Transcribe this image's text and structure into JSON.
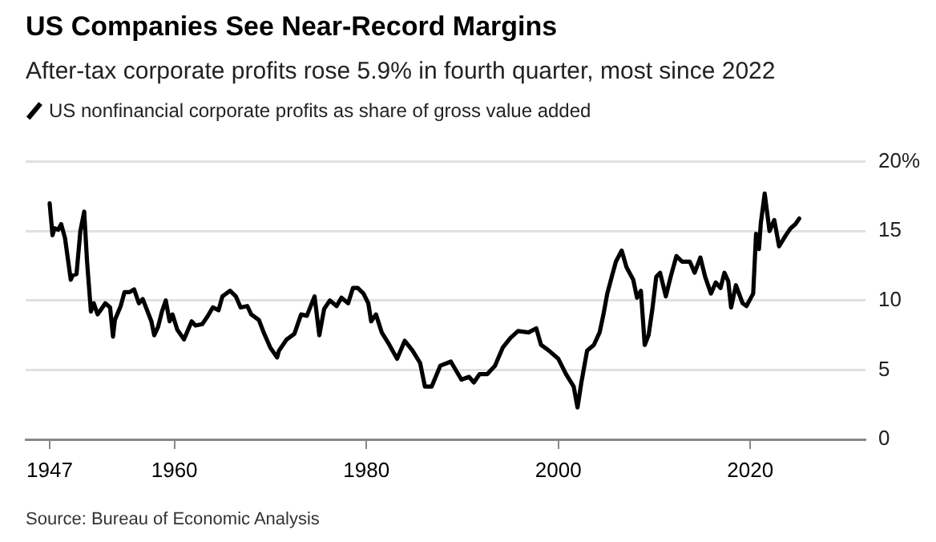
{
  "chart_data": {
    "type": "line",
    "title": "US Companies See Near-Record Margins",
    "subtitle": "After-tax corporate profits rose 5.9% in fourth quarter, most since 2022",
    "annotations": [
      "Source: Bureau of Economic Analysis"
    ],
    "legend": "top left",
    "grid": "y",
    "marker": "none",
    "line_style": "solid",
    "xlim": [
      1944.5,
      2032
    ],
    "xticks": [
      1947,
      1960,
      1980,
      2000,
      2020
    ],
    "ylim": [
      0,
      20
    ],
    "yticks": [
      0,
      5,
      10,
      15,
      {
        "value": 20,
        "label": "20%"
      }
    ],
    "series": [
      {
        "name": "US nonfinancial corporate profits as share of gross value added",
        "color": "#000000",
        "x": [
          1947.0,
          1947.3,
          1947.5,
          1947.9,
          1948.2,
          1948.6,
          1949.2,
          1949.4,
          1949.8,
          1950.2,
          1950.6,
          1950.9,
          1951.3,
          1951.6,
          1952.0,
          1952.4,
          1952.8,
          1953.3,
          1953.6,
          1953.8,
          1954.4,
          1954.8,
          1955.3,
          1955.8,
          1956.3,
          1956.7,
          1957.1,
          1957.6,
          1957.9,
          1958.3,
          1958.7,
          1959.1,
          1959.5,
          1959.8,
          1960.3,
          1961.0,
          1961.8,
          1962.2,
          1962.9,
          1963.4,
          1964.0,
          1964.6,
          1965.0,
          1965.8,
          1966.4,
          1966.9,
          1967.6,
          1968.0,
          1968.8,
          1969.3,
          1970.0,
          1970.7,
          1970.9,
          1971.7,
          1972.5,
          1973.2,
          1973.8,
          1974.6,
          1975.1,
          1975.6,
          1976.2,
          1976.9,
          1977.4,
          1978.1,
          1978.6,
          1979.1,
          1979.7,
          1980.2,
          1980.5,
          1981.0,
          1981.6,
          1982.4,
          1983.2,
          1984.0,
          1984.8,
          1985.6,
          1986.1,
          1986.8,
          1987.7,
          1988.8,
          1989.9,
          1990.7,
          1991.2,
          1991.8,
          1992.6,
          1993.4,
          1994.2,
          1995.0,
          1995.8,
          1996.9,
          1997.7,
          1998.2,
          1999.0,
          2000.0,
          2000.8,
          2001.6,
          2002.0,
          2002.4,
          2003.0,
          2003.7,
          2004.3,
          2004.7,
          2005.1,
          2005.6,
          2006.0,
          2006.6,
          2007.1,
          2007.8,
          2008.2,
          2008.6,
          2009.0,
          2009.4,
          2009.8,
          2010.2,
          2010.6,
          2011.2,
          2011.7,
          2012.3,
          2012.9,
          2013.7,
          2014.2,
          2014.8,
          2015.3,
          2015.9,
          2016.4,
          2016.9,
          2017.3,
          2017.7,
          2018.0,
          2018.5,
          2019.2,
          2019.6,
          2020.3,
          2020.6,
          2020.9,
          2021.1,
          2021.5,
          2022.0,
          2022.5,
          2023.0,
          2023.7,
          2024.2,
          2024.7,
          2025.1
        ],
        "values": [
          17.0,
          14.7,
          15.2,
          15.1,
          15.5,
          14.5,
          11.5,
          11.8,
          11.9,
          15.0,
          16.4,
          12.8,
          9.2,
          9.8,
          9.0,
          9.4,
          9.8,
          9.5,
          7.4,
          8.6,
          9.6,
          10.6,
          10.6,
          10.8,
          9.8,
          10.1,
          9.4,
          8.5,
          7.5,
          8.1,
          9.2,
          10.0,
          8.5,
          9.0,
          7.9,
          7.2,
          8.5,
          8.2,
          8.3,
          8.8,
          9.5,
          9.3,
          10.3,
          10.7,
          10.3,
          9.5,
          9.6,
          9.0,
          8.6,
          7.7,
          6.6,
          5.9,
          6.4,
          7.2,
          7.6,
          9.0,
          8.9,
          10.3,
          7.5,
          9.4,
          10.0,
          9.6,
          10.2,
          9.8,
          10.9,
          10.9,
          10.5,
          9.8,
          8.5,
          9.0,
          7.7,
          6.8,
          5.8,
          7.1,
          6.4,
          5.5,
          3.8,
          3.8,
          5.3,
          5.6,
          4.3,
          4.5,
          4.1,
          4.7,
          4.7,
          5.3,
          6.6,
          7.3,
          7.8,
          7.7,
          8.0,
          6.8,
          6.4,
          5.8,
          4.7,
          3.8,
          2.3,
          4.1,
          6.4,
          6.8,
          7.7,
          9.0,
          10.5,
          11.8,
          12.8,
          13.6,
          12.4,
          11.5,
          10.2,
          10.7,
          6.8,
          7.5,
          9.4,
          11.7,
          12.0,
          10.3,
          11.7,
          13.2,
          12.8,
          12.8,
          12.0,
          13.1,
          11.7,
          10.5,
          11.3,
          10.9,
          12.0,
          11.4,
          9.5,
          11.1,
          9.8,
          9.6,
          10.5,
          14.8,
          13.7,
          15.6,
          17.7,
          15.0,
          15.8,
          13.9,
          14.7,
          15.2,
          15.5,
          15.9
        ]
      }
    ]
  }
}
